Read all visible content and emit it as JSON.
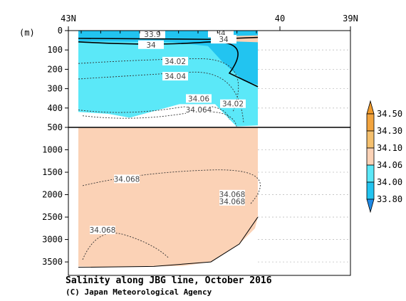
{
  "chart_data": {
    "type": "heatmap",
    "title": "Salinity along JBG line, October 2016",
    "credit": "(C) Japan Meteorological Agency",
    "y_unit_label": "(m)",
    "x_axis": {
      "ticks": [
        {
          "lat": 43,
          "label": "43N"
        },
        {
          "lat": 40,
          "label": "40"
        },
        {
          "lat": 39,
          "label": "39N"
        }
      ],
      "range": [
        43,
        39
      ]
    },
    "y_axis_upper": {
      "range": [
        0,
        500
      ],
      "ticks": [
        0,
        100,
        200,
        300,
        400,
        500
      ]
    },
    "y_axis_lower": {
      "range": [
        500,
        3800
      ],
      "ticks": [
        1000,
        1500,
        2000,
        2500,
        3000,
        3500
      ]
    },
    "colorbar": {
      "levels": [
        "34.50",
        "34.30",
        "34.10",
        "34.06",
        "34.00",
        "33.80"
      ],
      "bands": [
        {
          "from": 34.3,
          "to": 34.5,
          "color": "#f2a43e"
        },
        {
          "from": 34.1,
          "to": 34.3,
          "color": "#f5c06e"
        },
        {
          "from": 34.06,
          "to": 34.1,
          "color": "#fbd2b6"
        },
        {
          "from": 34.0,
          "to": 34.06,
          "color": "#5be8f8"
        },
        {
          "from": 33.8,
          "to": 34.0,
          "color": "#22c4f0"
        }
      ],
      "over_color": "#f09a2a",
      "under_color": "#1f8ae6"
    },
    "contour_labels": [
      "33.9",
      "34",
      "34",
      "34",
      "34.02",
      "34.04",
      "34.06",
      "34.064",
      "34.02",
      "34.068",
      "34.068",
      "34.068",
      "34.068"
    ],
    "colors": {
      "low_salinity": "#5be8f8",
      "very_low_salinity": "#22c4f0",
      "deep_water": "#fbd2b6",
      "frame": "#000000",
      "gridline": "#bfbfbf"
    }
  }
}
